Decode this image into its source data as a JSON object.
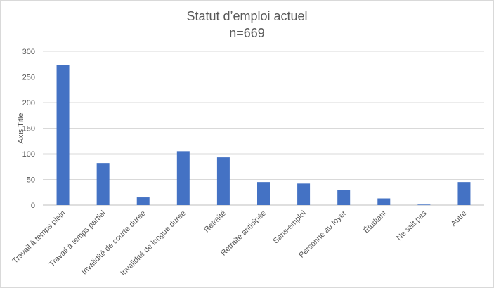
{
  "chart_data": {
    "type": "bar",
    "title": "Statut d’emploi actuel",
    "subtitle": "n=669",
    "xlabel": "",
    "ylabel": "Axis Title",
    "ylim": [
      0,
      300
    ],
    "yticks": [
      0,
      50,
      100,
      150,
      200,
      250,
      300
    ],
    "grid": true,
    "legend": "none",
    "bar_color": "#4472c4",
    "categories": [
      "Travail à temps plein",
      "Travail à temps partiel",
      "Invalidité de courte durée",
      "Invalidité de longue durée",
      "Retraité",
      "Retraite anticipée",
      "Sans-emploi",
      "Personne au foyer",
      "Étudiant",
      "Ne sait pas",
      "Autre"
    ],
    "values": [
      273,
      82,
      15,
      105,
      93,
      45,
      42,
      30,
      13,
      1,
      45
    ]
  }
}
